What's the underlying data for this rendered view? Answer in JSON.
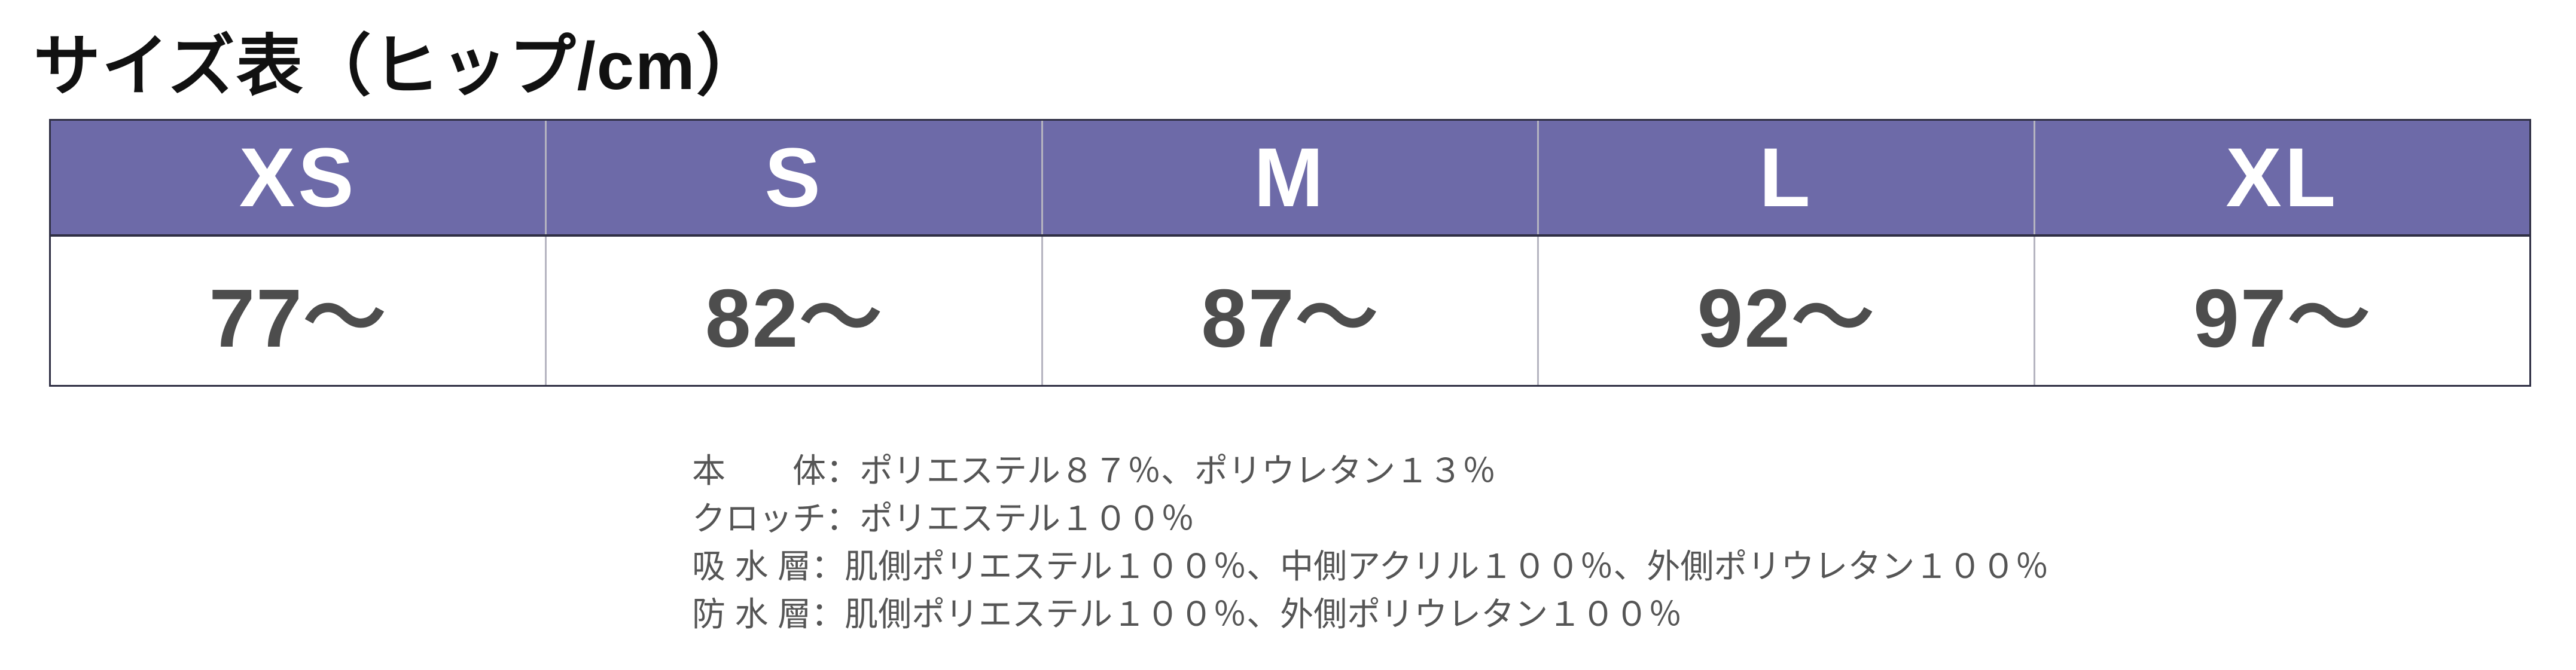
{
  "page": {
    "title": "サイズ表（ヒップ/cm）"
  },
  "size_table": {
    "measurement": "ヒップ",
    "unit": "cm",
    "columns": [
      {
        "label": "XS",
        "value": "77～"
      },
      {
        "label": "S",
        "value": "82～"
      },
      {
        "label": "M",
        "value": "87～"
      },
      {
        "label": "L",
        "value": "92～"
      },
      {
        "label": "XL",
        "value": "97～"
      }
    ]
  },
  "materials": {
    "lines": [
      "本　　体：ポリエステル８７％、ポリウレタン１３％",
      "クロッチ：ポリエステル１００％",
      "吸 水 層：肌側ポリエステル１００％、中側アクリル１００％、外側ポリウレタン１００％",
      "防 水 層：肌側ポリエステル１００％、外側ポリウレタン１００％"
    ]
  },
  "colors": {
    "header_bg": "#6D6AA8",
    "header_text": "#FFFFFF",
    "table_border": "#2F2F44",
    "column_divider": "#B5B4C0",
    "value_text": "#4D4D4D",
    "title_text": "#111111",
    "materials_text": "#555555",
    "background": "#FFFFFF"
  }
}
